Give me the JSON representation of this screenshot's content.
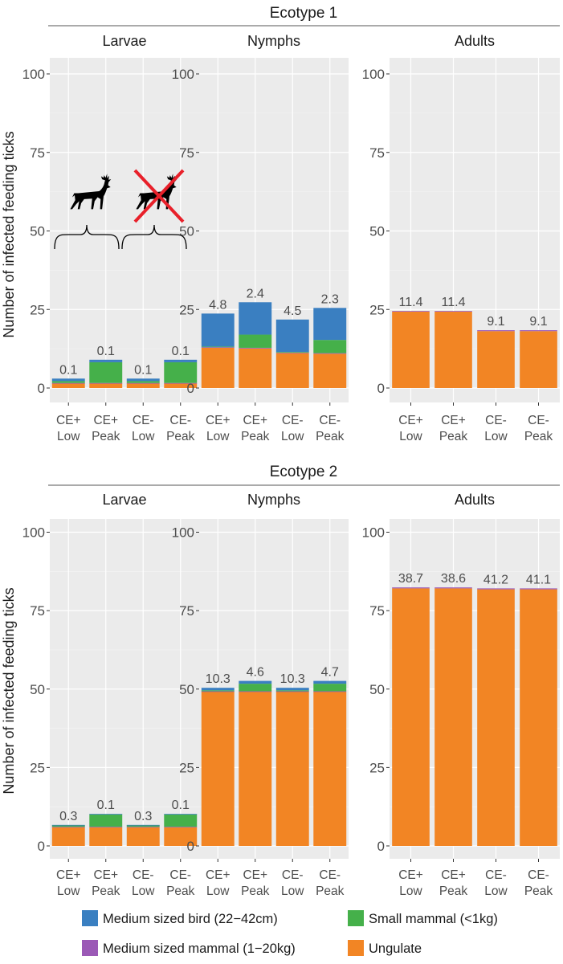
{
  "chart_data": {
    "type": "bar",
    "stacked": true,
    "ylabel": "Number of infected feeding ticks",
    "ylim": [
      0,
      100
    ],
    "yticks": [
      0,
      25,
      50,
      75,
      100
    ],
    "grid": true,
    "categories": [
      [
        "CE+",
        "Low"
      ],
      [
        "CE+",
        "Peak"
      ],
      [
        "CE-",
        "Low"
      ],
      [
        "CE-",
        "Peak"
      ]
    ],
    "legend": {
      "placement": "bottom",
      "entries": [
        {
          "key": "bird",
          "label": "Medium sized bird (22−42cm)",
          "color": "#3a7fc1"
        },
        {
          "key": "small",
          "label": "Small mammal (<1kg)",
          "color": "#45b04a"
        },
        {
          "key": "medium",
          "label": "Medium sized mammal (1−20kg)",
          "color": "#9b59b6"
        },
        {
          "key": "ungulate",
          "label": "Ungulate",
          "color": "#f28524"
        }
      ]
    },
    "ecotypes": [
      {
        "title": "Ecotype 1",
        "panels": [
          {
            "title": "Larvae",
            "icons": [
              "deer-present-icon",
              "deer-absent-icon"
            ],
            "bars": [
              {
                "label": "0.1",
                "ungulate": 1.5,
                "medium": 0.1,
                "small": 0.6,
                "bird": 0.8
              },
              {
                "label": "0.1",
                "ungulate": 1.5,
                "medium": 0.1,
                "small": 6.6,
                "bird": 0.8
              },
              {
                "label": "0.1",
                "ungulate": 1.5,
                "medium": 0.1,
                "small": 0.6,
                "bird": 0.8
              },
              {
                "label": "0.1",
                "ungulate": 1.5,
                "medium": 0.1,
                "small": 6.6,
                "bird": 0.8
              }
            ]
          },
          {
            "title": "Nymphs",
            "bars": [
              {
                "label": "4.8",
                "ungulate": 12.8,
                "medium": 0.2,
                "small": 0.2,
                "bird": 10.5
              },
              {
                "label": "2.4",
                "ungulate": 12.6,
                "medium": 0.2,
                "small": 4.2,
                "bird": 10.3
              },
              {
                "label": "4.5",
                "ungulate": 11.1,
                "medium": 0.2,
                "small": 0.2,
                "bird": 10.3
              },
              {
                "label": "2.3",
                "ungulate": 10.9,
                "medium": 0.2,
                "small": 4.2,
                "bird": 10.2
              }
            ]
          },
          {
            "title": "Adults",
            "bars": [
              {
                "label": "11.4",
                "ungulate": 24.3,
                "medium": 0.2,
                "small": 0.0,
                "bird": 0.0
              },
              {
                "label": "11.4",
                "ungulate": 24.3,
                "medium": 0.2,
                "small": 0.0,
                "bird": 0.0
              },
              {
                "label": "9.1",
                "ungulate": 18.1,
                "medium": 0.3,
                "small": 0.0,
                "bird": 0.0
              },
              {
                "label": "9.1",
                "ungulate": 18.1,
                "medium": 0.3,
                "small": 0.0,
                "bird": 0.0
              }
            ]
          }
        ]
      },
      {
        "title": "Ecotype 2",
        "panels": [
          {
            "title": "Larvae",
            "bars": [
              {
                "label": "0.3",
                "ungulate": 6.0,
                "medium": 0.1,
                "small": 0.5,
                "bird": 0.1
              },
              {
                "label": "0.1",
                "ungulate": 6.0,
                "medium": 0.1,
                "small": 4.0,
                "bird": 0.1
              },
              {
                "label": "0.3",
                "ungulate": 6.0,
                "medium": 0.1,
                "small": 0.5,
                "bird": 0.1
              },
              {
                "label": "0.1",
                "ungulate": 6.0,
                "medium": 0.1,
                "small": 4.0,
                "bird": 0.1
              }
            ]
          },
          {
            "title": "Nymphs",
            "bars": [
              {
                "label": "10.3",
                "ungulate": 49.2,
                "medium": 0.1,
                "small": 0.3,
                "bird": 0.8
              },
              {
                "label": "4.6",
                "ungulate": 49.2,
                "medium": 0.1,
                "small": 2.4,
                "bird": 0.9
              },
              {
                "label": "10.3",
                "ungulate": 49.2,
                "medium": 0.1,
                "small": 0.3,
                "bird": 0.8
              },
              {
                "label": "4.7",
                "ungulate": 49.2,
                "medium": 0.1,
                "small": 2.4,
                "bird": 0.9
              }
            ]
          },
          {
            "title": "Adults",
            "bars": [
              {
                "label": "38.7",
                "ungulate": 82.1,
                "medium": 0.3,
                "small": 0.0,
                "bird": 0.0
              },
              {
                "label": "38.6",
                "ungulate": 82.1,
                "medium": 0.3,
                "small": 0.0,
                "bird": 0.0
              },
              {
                "label": "41.2",
                "ungulate": 81.8,
                "medium": 0.3,
                "small": 0.0,
                "bird": 0.0
              },
              {
                "label": "41.1",
                "ungulate": 81.8,
                "medium": 0.3,
                "small": 0.0,
                "bird": 0.0
              }
            ]
          }
        ]
      }
    ]
  }
}
